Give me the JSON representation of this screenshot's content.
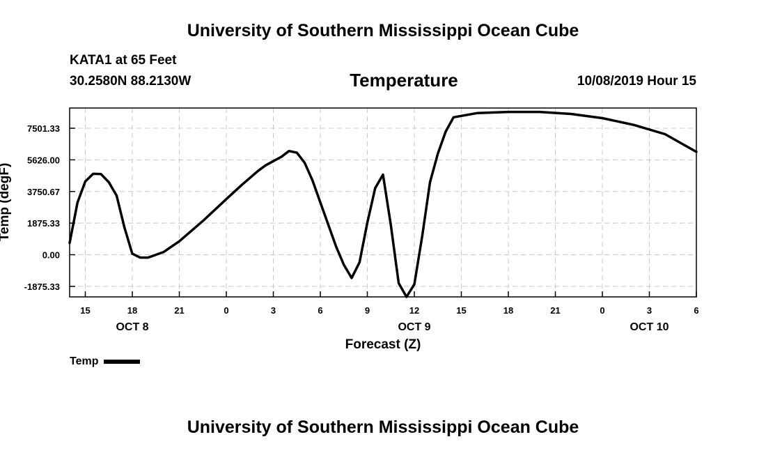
{
  "header": {
    "title": "University of Southern Mississippi Ocean Cube",
    "station": "KATA1 at 65 Feet",
    "coords": "30.2580N 88.2130W",
    "variable": "Temperature",
    "datetime": "10/08/2019 Hour 15"
  },
  "footer": {
    "title": "University of Southern Mississippi Ocean Cube"
  },
  "legend": {
    "label": "Temp"
  },
  "chart_data": {
    "type": "line",
    "title": "Temperature",
    "xlabel": "Forecast (Z)",
    "ylabel": "Temp (degF)",
    "ylim": [
      -2500,
      8700
    ],
    "xlim": [
      14,
      54
    ],
    "grid": true,
    "line_color": "#000000",
    "grid_color": "#c8c8c8",
    "yticks": [
      -1875.33,
      0.0,
      1875.33,
      3750.67,
      5626.0,
      7501.33
    ],
    "ytick_labels": [
      "-1875.33",
      "0.00",
      "1875.33",
      "3750.67",
      "5626.00",
      "7501.33"
    ],
    "xticks": [
      15,
      18,
      21,
      24,
      27,
      30,
      33,
      36,
      39,
      42,
      45,
      48,
      51,
      54
    ],
    "xtick_labels": [
      "15",
      "18",
      "21",
      "0",
      "3",
      "6",
      "9",
      "12",
      "15",
      "18",
      "21",
      "0",
      "3",
      "6"
    ],
    "date_ticks": [
      18,
      36,
      51
    ],
    "date_labels": [
      "OCT 8",
      "OCT 9",
      "OCT 10"
    ],
    "series": [
      {
        "name": "Temp",
        "x": [
          14,
          14.5,
          15,
          15.5,
          16,
          16.5,
          17,
          17.5,
          18,
          18.5,
          19,
          20,
          21,
          22.5,
          24,
          25,
          26,
          26.5,
          27,
          27.5,
          28,
          28.5,
          29,
          29.5,
          30,
          30.5,
          31,
          31.5,
          32,
          32.5,
          33,
          33.5,
          34,
          34.5,
          35,
          35.5,
          36,
          36.5,
          37,
          37.5,
          38,
          38.5,
          40,
          42,
          44,
          46,
          48,
          50,
          52,
          54
        ],
        "values": [
          700,
          3100,
          4350,
          4800,
          4780,
          4300,
          3500,
          1600,
          60,
          -170,
          -170,
          160,
          800,
          2000,
          3300,
          4150,
          4950,
          5300,
          5550,
          5800,
          6150,
          6050,
          5450,
          4400,
          3100,
          1800,
          500,
          -600,
          -1380,
          -450,
          1900,
          3950,
          4750,
          1750,
          -1680,
          -2500,
          -1750,
          1100,
          4300,
          6000,
          7300,
          8150,
          8400,
          8470,
          8470,
          8350,
          8100,
          7700,
          7150,
          6100
        ]
      }
    ]
  }
}
